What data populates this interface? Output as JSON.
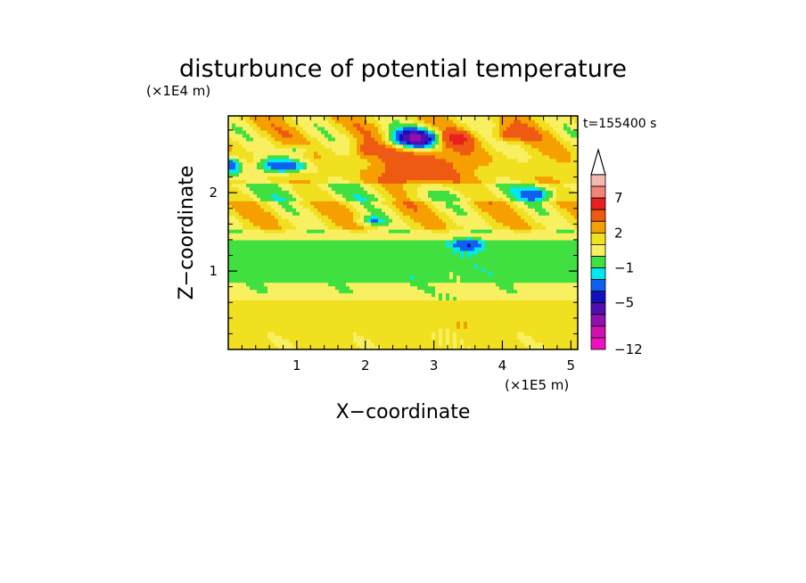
{
  "chart_data": {
    "type": "heatmap",
    "title": "disturbunce of potential temperature",
    "time_label": "t=155400 s",
    "xlabel": "X−coordinate",
    "ylabel": "Z−coordinate",
    "x_unit": "(×1E5 m)",
    "y_unit": "(×1E4 m)",
    "xlim": [
      0,
      5.1
    ],
    "ylim": [
      0,
      2.98
    ],
    "x_ticks": [
      "1",
      "2",
      "3",
      "4",
      "5"
    ],
    "y_ticks": [
      "1",
      "2"
    ],
    "colorbar": {
      "extend_max": true,
      "labels": [
        {
          "text": "7",
          "level": 7
        },
        {
          "text": "2",
          "level": 2
        },
        {
          "text": "−1",
          "level": -1
        },
        {
          "text": "−5",
          "level": -5
        },
        {
          "text": "−12",
          "level": -12
        }
      ],
      "bins": [
        {
          "upper": 9,
          "color": "#f5b8b0"
        },
        {
          "upper": 8,
          "color": "#f28478"
        },
        {
          "upper": 7,
          "color": "#e82020"
        },
        {
          "upper": 5,
          "color": "#ee5a12"
        },
        {
          "upper": 3,
          "color": "#f5a000"
        },
        {
          "upper": 2,
          "color": "#f0e020"
        },
        {
          "upper": 1,
          "color": "#f8f060"
        },
        {
          "upper": 0,
          "color": "#40e040"
        },
        {
          "upper": -1,
          "color": "#00e8f0"
        },
        {
          "upper": -2,
          "color": "#1060f0"
        },
        {
          "upper": -4,
          "color": "#1010c0"
        },
        {
          "upper": -5,
          "color": "#5010b0"
        },
        {
          "upper": -7,
          "color": "#9010b0"
        },
        {
          "upper": -9,
          "color": "#d010b0"
        },
        {
          "upper": -10,
          "color": "#f010c0"
        }
      ]
    },
    "grid": false,
    "legend": "right"
  }
}
